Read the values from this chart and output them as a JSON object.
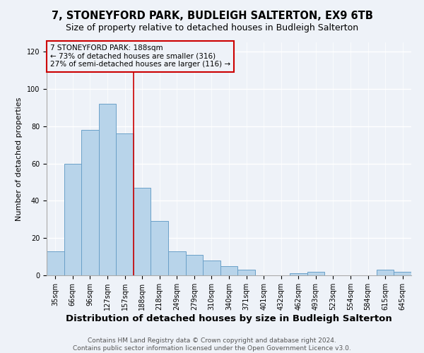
{
  "title": "7, STONEYFORD PARK, BUDLEIGH SALTERTON, EX9 6TB",
  "subtitle": "Size of property relative to detached houses in Budleigh Salterton",
  "xlabel": "Distribution of detached houses by size in Budleigh Salterton",
  "ylabel": "Number of detached properties",
  "bar_labels": [
    "35sqm",
    "66sqm",
    "96sqm",
    "127sqm",
    "157sqm",
    "188sqm",
    "218sqm",
    "249sqm",
    "279sqm",
    "310sqm",
    "340sqm",
    "371sqm",
    "401sqm",
    "432sqm",
    "462sqm",
    "493sqm",
    "523sqm",
    "554sqm",
    "584sqm",
    "615sqm",
    "645sqm"
  ],
  "bar_values": [
    13,
    60,
    78,
    92,
    76,
    47,
    29,
    13,
    11,
    8,
    5,
    3,
    0,
    0,
    1,
    2,
    0,
    0,
    0,
    3,
    2
  ],
  "bar_color": "#b8d4ea",
  "bar_edge_color": "#6aa0c8",
  "vline_color": "#cc0000",
  "annotation_title": "7 STONEYFORD PARK: 188sqm",
  "annotation_line1": "← 73% of detached houses are smaller (316)",
  "annotation_line2": "27% of semi-detached houses are larger (116) →",
  "annotation_box_color": "#cc0000",
  "ylim": [
    0,
    125
  ],
  "yticks": [
    0,
    20,
    40,
    60,
    80,
    100,
    120
  ],
  "footer1": "Contains HM Land Registry data © Crown copyright and database right 2024.",
  "footer2": "Contains public sector information licensed under the Open Government Licence v3.0.",
  "bg_color": "#eef2f8",
  "grid_color": "#ffffff",
  "title_fontsize": 10.5,
  "subtitle_fontsize": 9,
  "xlabel_fontsize": 9.5,
  "ylabel_fontsize": 8,
  "tick_fontsize": 7,
  "annotation_fontsize": 7.5,
  "footer_fontsize": 6.5
}
